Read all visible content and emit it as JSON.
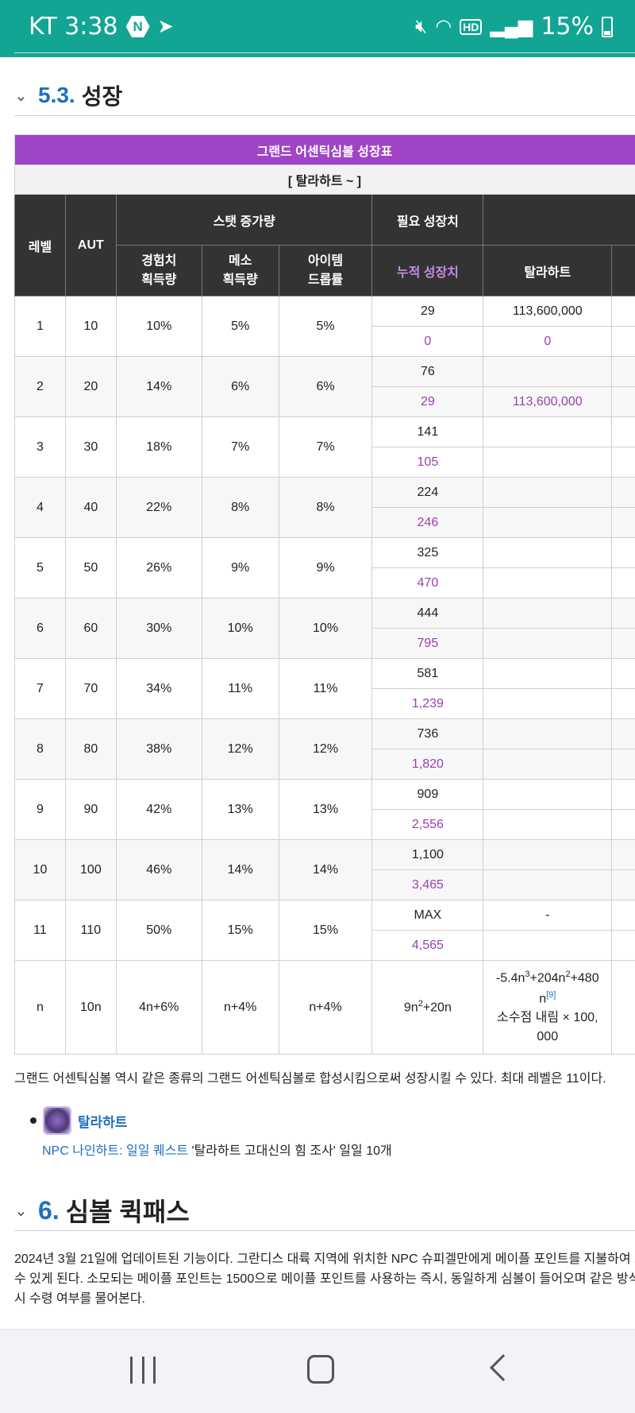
{
  "status_bar": {
    "carrier_time": "KT 3:38",
    "app_icon_letter": "N",
    "battery": "15%",
    "hd_label": "HD"
  },
  "section_53": {
    "number": "5.3.",
    "title": "성장"
  },
  "table": {
    "title": "그랜드 어센틱심볼 성장표",
    "subtitle": "[ 탈라하트 ~ ]",
    "header": {
      "level": "레벨",
      "aut": "AUT",
      "stat_group": "스탯 증가량",
      "exp": "경험치\n획득량",
      "meso": "메소\n획득량",
      "item": "아이템\n드롭률",
      "required_group": "필요 성장치",
      "cumulative": "누적 성장치",
      "talahart": "탈라하트"
    },
    "rows": [
      {
        "level": "1",
        "aut": "10",
        "exp": "10%",
        "meso": "5%",
        "item": "5%",
        "req": "29",
        "cum": "0",
        "cost": "113,600,000",
        "cost_cum": "0"
      },
      {
        "level": "2",
        "aut": "20",
        "exp": "14%",
        "meso": "6%",
        "item": "6%",
        "req": "76",
        "cum": "29",
        "cost": "",
        "cost_cum": "113,600,000"
      },
      {
        "level": "3",
        "aut": "30",
        "exp": "18%",
        "meso": "7%",
        "item": "7%",
        "req": "141",
        "cum": "105",
        "cost": "",
        "cost_cum": ""
      },
      {
        "level": "4",
        "aut": "40",
        "exp": "22%",
        "meso": "8%",
        "item": "8%",
        "req": "224",
        "cum": "246",
        "cost": "",
        "cost_cum": ""
      },
      {
        "level": "5",
        "aut": "50",
        "exp": "26%",
        "meso": "9%",
        "item": "9%",
        "req": "325",
        "cum": "470",
        "cost": "",
        "cost_cum": ""
      },
      {
        "level": "6",
        "aut": "60",
        "exp": "30%",
        "meso": "10%",
        "item": "10%",
        "req": "444",
        "cum": "795",
        "cost": "",
        "cost_cum": ""
      },
      {
        "level": "7",
        "aut": "70",
        "exp": "34%",
        "meso": "11%",
        "item": "11%",
        "req": "581",
        "cum": "1,239",
        "cost": "",
        "cost_cum": ""
      },
      {
        "level": "8",
        "aut": "80",
        "exp": "38%",
        "meso": "12%",
        "item": "12%",
        "req": "736",
        "cum": "1,820",
        "cost": "",
        "cost_cum": ""
      },
      {
        "level": "9",
        "aut": "90",
        "exp": "42%",
        "meso": "13%",
        "item": "13%",
        "req": "909",
        "cum": "2,556",
        "cost": "",
        "cost_cum": ""
      },
      {
        "level": "10",
        "aut": "100",
        "exp": "46%",
        "meso": "14%",
        "item": "14%",
        "req": "1,100",
        "cum": "3,465",
        "cost": "",
        "cost_cum": ""
      },
      {
        "level": "11",
        "aut": "110",
        "exp": "50%",
        "meso": "15%",
        "item": "15%",
        "req": "MAX",
        "cum": "4,565",
        "cost": "-",
        "cost_cum": ""
      }
    ],
    "formula_row": {
      "level": "n",
      "aut": "10n",
      "exp": "4n+6%",
      "meso": "n+4%",
      "item": "n+4%",
      "req_a": "9n",
      "req_b": "+20n",
      "cost_a": "-5.4n",
      "cost_b": "+204n",
      "cost_c": "+480",
      "cost_d": "n",
      "footnote": "[9]",
      "cost_e": "소수점 내림 × 100,",
      "cost_f": "000"
    }
  },
  "growth_note": "그랜드 어센틱심볼 역시 같은 종류의 그랜드 어센틱심볼로 합성시킴으로써 성장시킬 수 있다. 최대 레벨은 11이다.",
  "bullet": {
    "label": "탈라하트",
    "npc_link": "NPC 나인하트",
    "sep": ": ",
    "quest_link": "일일 퀘스트",
    "quest_text": " '탈라하트 고대신의 힘 조사' 일일 10개"
  },
  "section_6": {
    "number": "6.",
    "title": "심볼 퀵패스"
  },
  "quickpass_lines": [
    "2024년 3월 21일에 업데이트된 기능이다. 그란디스 대륙 지역에 위치한 NPC 슈피겔만에게 메이플 포인트를 지불하여 그",
    "수 있게 된다. 소모되는 메이플 포인트는 1500으로 메이플 포인트를 사용하는 즉시, 동일하게 심볼이 들어오며 같은 방식",
    "시 수령 여부를 물어본다."
  ]
}
